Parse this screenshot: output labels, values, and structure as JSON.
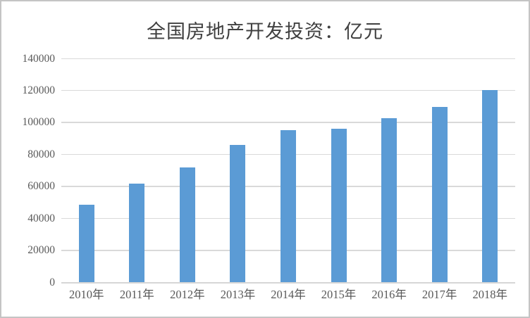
{
  "chart_data": {
    "type": "bar",
    "title": "全国房地产开发投资：亿元",
    "categories": [
      "2010年",
      "2011年",
      "2012年",
      "2013年",
      "2014年",
      "2015年",
      "2016年",
      "2017年",
      "2018年"
    ],
    "values": [
      48267,
      61740,
      71804,
      86013,
      95036,
      95979,
      102581,
      109799,
      120264
    ],
    "xlabel": "",
    "ylabel": "",
    "ylim": [
      0,
      140000
    ],
    "y_ticks": [
      0,
      20000,
      40000,
      60000,
      80000,
      100000,
      120000,
      140000
    ],
    "grid": "horizontal",
    "legend": "none",
    "colors": {
      "bar": "#5B9BD5",
      "gridline": "#D9D9D9",
      "axis_line": "#D6D6D6",
      "tick_label": "#595959",
      "title": "#404040",
      "frame_border": "#C4C4C4",
      "background": "#FFFFFF"
    }
  }
}
